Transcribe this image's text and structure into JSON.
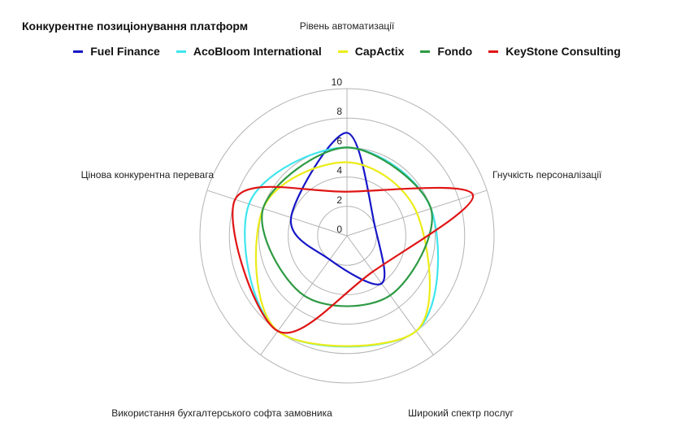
{
  "chart_data": {
    "type": "radar",
    "title": "Конкурентне позиціонування платформ",
    "axes": [
      "Рівень автоматизації",
      "Гнучкість персоналізації",
      "Широкий спектр послуг",
      "Використання бухгалтерського софта замовника",
      "Цінова конкурентна перевага"
    ],
    "rlim": [
      0,
      10
    ],
    "ticks": [
      "0",
      "2",
      "4",
      "6",
      "8",
      "10"
    ],
    "legend_position": "top",
    "series": [
      {
        "name": "Fuel Finance",
        "color": "#1616c8",
        "values": [
          7,
          2,
          4,
          2,
          4
        ]
      },
      {
        "name": "AcoBloom International",
        "color": "#3ee6ee",
        "values": [
          6,
          6,
          8,
          8,
          7
        ]
      },
      {
        "name": "CapActix",
        "color": "#ecec1a",
        "values": [
          5,
          5,
          8,
          8,
          6
        ]
      },
      {
        "name": "Fondo",
        "color": "#2e9a44",
        "values": [
          6,
          6,
          5,
          5,
          6
        ]
      },
      {
        "name": "KeyStone Consulting",
        "color": "#e01414",
        "values": [
          3,
          9,
          3,
          8,
          8
        ]
      }
    ]
  }
}
